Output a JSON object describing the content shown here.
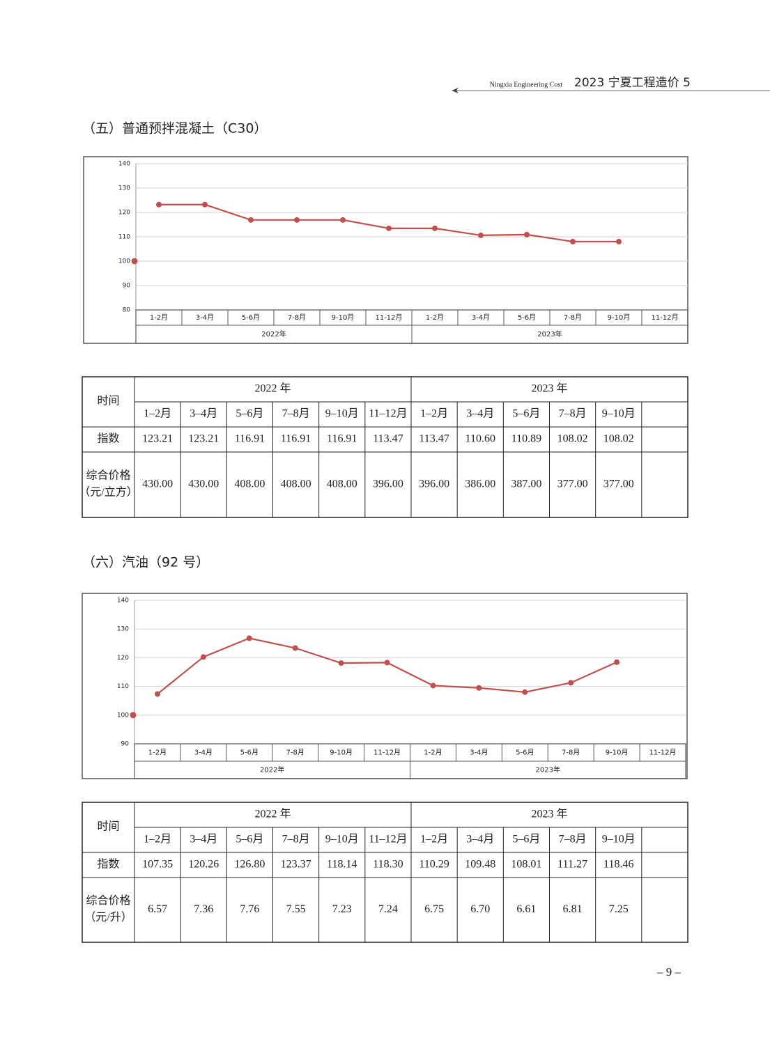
{
  "header": {
    "subtitle": "Ningxia Engineering Cost",
    "title": "2023 宁夏工程造价 5"
  },
  "sections": [
    {
      "title": "（五）普通预拌混凝土（C30）"
    },
    {
      "title": "（六）汽油（92 号）"
    }
  ],
  "chart_data": [
    {
      "type": "line",
      "base": 100,
      "categories": [
        "1-2月",
        "3-4月",
        "5-6月",
        "7-8月",
        "9-10月",
        "11-12月",
        "1-2月",
        "3-4月",
        "5-6月",
        "7-8月",
        "9-10月",
        "11-12月"
      ],
      "groups": [
        "2022年",
        "2023年"
      ],
      "values": [
        123.21,
        123.21,
        116.91,
        116.91,
        116.91,
        113.47,
        113.47,
        110.6,
        110.89,
        108.02,
        108.02,
        null
      ],
      "color": "#c0504d",
      "ylim": [
        80,
        140
      ],
      "yticks": [
        80,
        90,
        100,
        110,
        120,
        130,
        140
      ],
      "grid": true
    },
    {
      "type": "line",
      "base": 100,
      "categories": [
        "1-2月",
        "3-4月",
        "5-6月",
        "7-8月",
        "9-10月",
        "11-12月",
        "1-2月",
        "3-4月",
        "5-6月",
        "7-8月",
        "9-10月",
        "11-12月"
      ],
      "groups": [
        "2022年",
        "2023年"
      ],
      "values": [
        107.35,
        120.26,
        126.8,
        123.37,
        118.14,
        118.3,
        110.29,
        109.48,
        108.01,
        111.27,
        118.46,
        null
      ],
      "color": "#c0504d",
      "ylim": [
        90,
        140
      ],
      "yticks": [
        90,
        100,
        110,
        120,
        130,
        140
      ],
      "grid": true
    }
  ],
  "tables": [
    {
      "corner": "时间",
      "years": [
        "2022 年",
        "2023 年"
      ],
      "months": [
        "1–2月",
        "3–4月",
        "5–6月",
        "7–8月",
        "9–10月",
        "11–12月",
        "1–2月",
        "3–4月",
        "5–6月",
        "7–8月",
        "9–10月"
      ],
      "rows": [
        {
          "label": [
            "指数"
          ],
          "cells": [
            "123.21",
            "123.21",
            "116.91",
            "116.91",
            "116.91",
            "113.47",
            "113.47",
            "110.60",
            "110.89",
            "108.02",
            "108.02"
          ]
        },
        {
          "label": [
            "综合价格",
            "（元/立方）"
          ],
          "cells": [
            "430.00",
            "430.00",
            "408.00",
            "408.00",
            "408.00",
            "396.00",
            "396.00",
            "386.00",
            "387.00",
            "377.00",
            "377.00"
          ]
        }
      ]
    },
    {
      "corner": "时间",
      "years": [
        "2022 年",
        "2023 年"
      ],
      "months": [
        "1–2月",
        "3–4月",
        "5–6月",
        "7–8月",
        "9–10月",
        "11–12月",
        "1–2月",
        "3–4月",
        "5–6月",
        "7–8月",
        "9–10月"
      ],
      "rows": [
        {
          "label": [
            "指数"
          ],
          "cells": [
            "107.35",
            "120.26",
            "126.80",
            "123.37",
            "118.14",
            "118.30",
            "110.29",
            "109.48",
            "108.01",
            "111.27",
            "118.46"
          ]
        },
        {
          "label": [
            "综合价格",
            "（元/升）"
          ],
          "cells": [
            "6.57",
            "7.36",
            "7.76",
            "7.55",
            "7.23",
            "7.24",
            "6.75",
            "6.70",
            "6.61",
            "6.81",
            "7.25"
          ]
        }
      ]
    }
  ],
  "footer": {
    "page": "– 9 –"
  }
}
